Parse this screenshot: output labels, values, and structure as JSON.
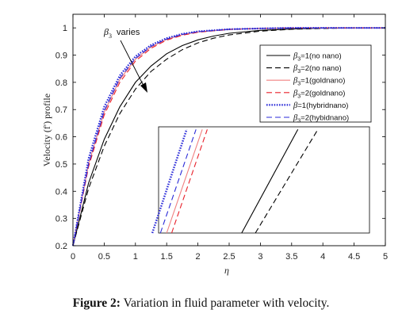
{
  "caption": {
    "label": "Figure 2:",
    "text": "Variation in fluid parameter with velocity."
  },
  "chart_data": {
    "type": "line",
    "xlabel": "η",
    "ylabel": "Velocity (f') profile",
    "xlim": [
      0,
      5
    ],
    "ylim": [
      0.2,
      1.05
    ],
    "xticks": [
      0,
      0.5,
      1,
      1.5,
      2,
      2.5,
      3,
      3.5,
      4,
      4.5,
      5
    ],
    "yticks": [
      0.2,
      0.3,
      0.4,
      0.5,
      0.6,
      0.7,
      0.8,
      0.9,
      1
    ],
    "xtick_labels": [
      "0",
      "0.5",
      "1",
      "1.5",
      "2",
      "2.5",
      "3",
      "3.5",
      "4",
      "4.5",
      "5"
    ],
    "ytick_labels": [
      "0.2",
      "0.3",
      "0.4",
      "0.5",
      "0.6",
      "0.7",
      "0.8",
      "0.9",
      "1"
    ],
    "grid": false,
    "legend_position": "right",
    "annotation": {
      "symbol": "β",
      "subscript": "3",
      "text": "varies"
    },
    "series": [
      {
        "name": "β3=1(no nano)",
        "legend_sym": "β",
        "legend_sub": "3",
        "legend_rest": "=1(no nano)",
        "color": "#000000",
        "style": "solid",
        "x": [
          0,
          0.25,
          0.5,
          0.75,
          1,
          1.25,
          1.5,
          1.75,
          2,
          2.25,
          2.5,
          3,
          3.5,
          4,
          4.5,
          5
        ],
        "y": [
          0.2,
          0.43,
          0.59,
          0.71,
          0.8,
          0.86,
          0.905,
          0.935,
          0.956,
          0.97,
          0.98,
          0.991,
          0.996,
          0.999,
          1.0,
          1.0
        ]
      },
      {
        "name": "β3=2(no nano)",
        "legend_sym": "β",
        "legend_sub": "3",
        "legend_rest": "=2(no nano)",
        "color": "#000000",
        "style": "dashed",
        "x": [
          0,
          0.25,
          0.5,
          0.75,
          1,
          1.25,
          1.5,
          1.75,
          2,
          2.25,
          2.5,
          3,
          3.5,
          4,
          4.5,
          5
        ],
        "y": [
          0.2,
          0.41,
          0.565,
          0.685,
          0.775,
          0.84,
          0.885,
          0.92,
          0.945,
          0.962,
          0.974,
          0.988,
          0.995,
          0.998,
          1.0,
          1.0
        ]
      },
      {
        "name": "β3=1(goldnano)",
        "legend_sym": "β",
        "legend_sub": "3",
        "legend_rest": "=1(goldnano)",
        "color": "#f08080",
        "style": "solid",
        "x": [
          0,
          0.25,
          0.5,
          0.75,
          1,
          1.25,
          1.5,
          1.75,
          2,
          2.5,
          3,
          3.5,
          4,
          5
        ],
        "y": [
          0.2,
          0.5,
          0.69,
          0.81,
          0.885,
          0.93,
          0.958,
          0.975,
          0.985,
          0.995,
          0.998,
          1.0,
          1.0,
          1.0
        ]
      },
      {
        "name": "β3=2(goldnano)",
        "legend_sym": "β",
        "legend_sub": "3",
        "legend_rest": "=2(goldnano)",
        "color": "#e8202a",
        "style": "dashed",
        "x": [
          0,
          0.25,
          0.5,
          0.75,
          1,
          1.25,
          1.5,
          1.75,
          2,
          2.5,
          3,
          3.5,
          4,
          5
        ],
        "y": [
          0.2,
          0.49,
          0.68,
          0.8,
          0.878,
          0.925,
          0.955,
          0.973,
          0.984,
          0.994,
          0.998,
          1.0,
          1.0,
          1.0
        ]
      },
      {
        "name": "β=1(hybridnano)",
        "legend_sym": "β",
        "legend_sub": "",
        "legend_rest": "=1(hybridnano)",
        "color": "#2a2ad8",
        "style": "dotted",
        "x": [
          0,
          0.25,
          0.5,
          0.75,
          1,
          1.25,
          1.5,
          1.75,
          2,
          2.5,
          3,
          3.5,
          4,
          5
        ],
        "y": [
          0.2,
          0.52,
          0.71,
          0.825,
          0.895,
          0.937,
          0.962,
          0.978,
          0.987,
          0.995,
          0.998,
          1.0,
          1.0,
          1.0
        ]
      },
      {
        "name": "β3=2(hybidnano)",
        "legend_sym": "β",
        "legend_sub": "3",
        "legend_rest": "=2(hybidnano)",
        "color": "#2a2ad8",
        "style": "dashed",
        "x": [
          0,
          0.25,
          0.5,
          0.75,
          1,
          1.25,
          1.5,
          1.75,
          2,
          2.5,
          3,
          3.5,
          4,
          5
        ],
        "y": [
          0.2,
          0.5,
          0.695,
          0.815,
          0.888,
          0.932,
          0.959,
          0.976,
          0.986,
          0.995,
          0.998,
          1.0,
          1.0,
          1.0
        ]
      }
    ],
    "inset_series": [
      {
        "name": "β3=1(no nano)",
        "x": [
          2.7,
          3.6
        ],
        "y": [
          0.2,
          0.98
        ]
      },
      {
        "name": "β3=2(no nano)",
        "x": [
          2.92,
          3.92
        ],
        "y": [
          0.2,
          0.98
        ]
      },
      {
        "name": "β3=1(goldnano)",
        "x": [
          1.5,
          2.07
        ],
        "y": [
          0.2,
          0.98
        ]
      },
      {
        "name": "β3=2(goldnano)",
        "x": [
          1.58,
          2.15
        ],
        "y": [
          0.2,
          0.98
        ]
      },
      {
        "name": "β=1(hybridnano)",
        "x": [
          1.27,
          1.82
        ],
        "y": [
          0.2,
          0.98
        ]
      },
      {
        "name": "β3=2(hybidnano)",
        "x": [
          1.4,
          1.97
        ],
        "y": [
          0.2,
          0.98
        ]
      }
    ]
  }
}
